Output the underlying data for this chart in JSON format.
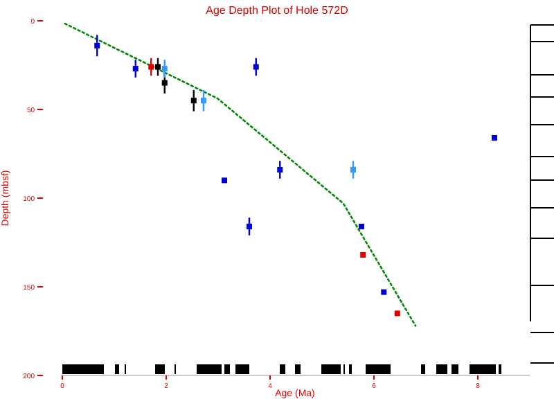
{
  "chart_data": {
    "type": "scatter",
    "title": "Age Depth Plot of Hole 572D",
    "xlabel": "Age (Ma)",
    "ylabel": "Depth (mbsf)",
    "xlim": [
      0,
      9
    ],
    "xticks": [
      0,
      2,
      4,
      6,
      8
    ],
    "ylim": [
      200,
      0
    ],
    "yticks": [
      0,
      50,
      100,
      150,
      200
    ],
    "grid": false,
    "marker": "square",
    "series": [
      {
        "type": "line",
        "color": "#008800",
        "line_style": "dotted",
        "marker": "none",
        "x": [
          0.05,
          2.99,
          5.41,
          6.8
        ],
        "values": [
          1.6,
          43.8,
          103,
          172
        ]
      },
      {
        "color": "#0000cc",
        "x": [
          0.67,
          1.41,
          3.73,
          3.12,
          3.6,
          4.19,
          5.76,
          6.19,
          8.32
        ],
        "values": [
          14,
          27,
          26,
          90,
          116,
          84,
          116,
          153,
          66
        ],
        "errors": [
          6,
          5,
          5,
          null,
          5,
          5,
          null,
          null,
          null
        ]
      },
      {
        "color": "#dd0000",
        "x": [
          1.71,
          5.79,
          6.45
        ],
        "values": [
          26,
          132,
          165
        ],
        "errors": [
          5,
          null,
          null
        ]
      },
      {
        "color": "#000000",
        "x": [
          1.84,
          1.97,
          2.53
        ],
        "values": [
          26,
          35,
          45
        ],
        "errors": [
          5,
          6,
          6
        ]
      },
      {
        "color": "#3399ff",
        "x": [
          1.97,
          2.72,
          5.6
        ],
        "values": [
          27,
          45,
          84
        ],
        "errors": [
          5,
          6,
          5
        ]
      }
    ]
  }
}
